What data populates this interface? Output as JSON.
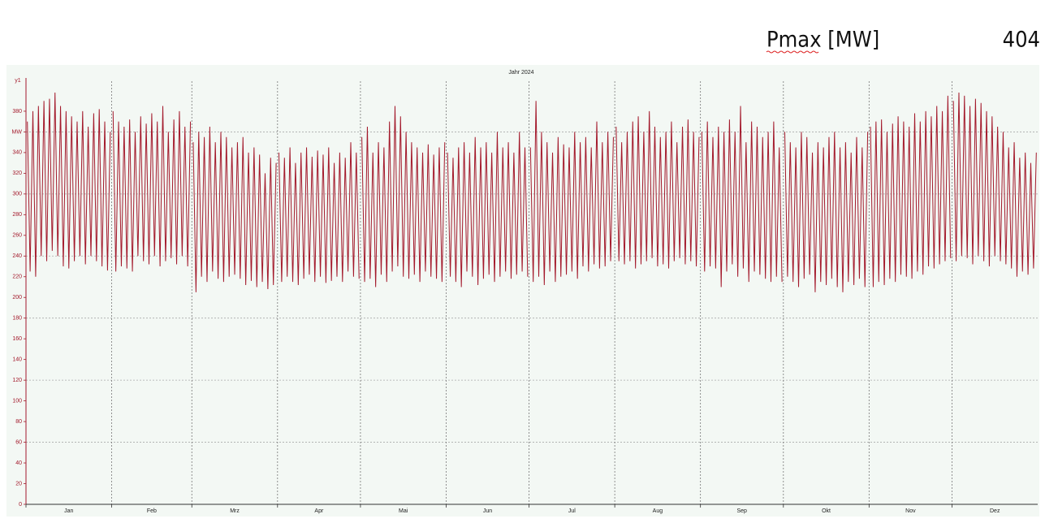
{
  "header": {
    "title": "Pmax [MW]",
    "value": "404"
  },
  "chart_data": {
    "type": "line",
    "title": "Jahr 2024",
    "y_axis_label": "y1",
    "color": "#a3192b",
    "ylim": [
      0,
      409
    ],
    "yticks": [
      0,
      20,
      40,
      60,
      80,
      100,
      120,
      140,
      160,
      180,
      200,
      220,
      240,
      260,
      280,
      300,
      320,
      340,
      {
        "value": 360,
        "label": "MW"
      },
      380
    ],
    "ygrid": [
      60,
      120,
      180,
      240,
      300,
      360
    ],
    "months": [
      {
        "label": "Jan",
        "values": [
          370,
          225,
          380,
          220,
          385,
          240,
          390,
          235,
          392,
          245,
          398,
          240,
          385,
          230,
          380,
          228,
          375,
          235,
          370,
          240,
          380,
          232,
          365,
          240,
          378,
          235,
          382,
          230,
          370,
          226,
          360
        ]
      },
      {
        "label": "Feb",
        "values": [
          380,
          225,
          370,
          230,
          365,
          228,
          372,
          225,
          360,
          240,
          375,
          235,
          368,
          232,
          378,
          240,
          370,
          230,
          385,
          235,
          360,
          238,
          372,
          232,
          380,
          240,
          365,
          230,
          370
        ]
      },
      {
        "label": "Mrz",
        "values": [
          350,
          205,
          360,
          220,
          355,
          215,
          365,
          225,
          350,
          218,
          360,
          215,
          355,
          220,
          345,
          222,
          350,
          218,
          355,
          212,
          340,
          216,
          345,
          210,
          338,
          215,
          320,
          208,
          335,
          212,
          330
        ]
      },
      {
        "label": "Apr",
        "values": [
          340,
          215,
          335,
          220,
          345,
          215,
          330,
          212,
          340,
          218,
          345,
          222,
          336,
          215,
          342,
          220,
          338,
          214,
          345,
          216,
          330,
          220,
          340,
          215,
          335,
          225,
          350,
          220,
          340,
          218
        ]
      },
      {
        "label": "Mai",
        "values": [
          355,
          215,
          365,
          218,
          340,
          210,
          350,
          222,
          345,
          215,
          370,
          225,
          385,
          230,
          375,
          220,
          360,
          218,
          350,
          222,
          345,
          215,
          340,
          225,
          348,
          220,
          338,
          218,
          345,
          215,
          350
        ]
      },
      {
        "label": "Jun",
        "values": [
          340,
          220,
          335,
          215,
          345,
          210,
          350,
          225,
          340,
          220,
          355,
          212,
          345,
          218,
          350,
          222,
          340,
          215,
          360,
          220,
          345,
          225,
          350,
          218,
          340,
          222,
          360,
          225,
          345,
          220
        ]
      },
      {
        "label": "Jul",
        "values": [
          345,
          215,
          390,
          220,
          360,
          212,
          350,
          225,
          340,
          215,
          355,
          220,
          348,
          222,
          345,
          225,
          360,
          218,
          350,
          230,
          355,
          225,
          345,
          232,
          370,
          228,
          350,
          230,
          360,
          235,
          355
        ]
      },
      {
        "label": "Aug",
        "values": [
          365,
          235,
          350,
          232,
          360,
          235,
          370,
          228,
          375,
          232,
          360,
          235,
          380,
          238,
          365,
          230,
          355,
          232,
          360,
          228,
          370,
          235,
          350,
          238,
          365,
          232,
          372,
          235,
          360,
          230,
          355
        ]
      },
      {
        "label": "Sep",
        "values": [
          360,
          225,
          370,
          230,
          355,
          228,
          365,
          210,
          360,
          225,
          372,
          232,
          360,
          220,
          385,
          228,
          350,
          215,
          370,
          225,
          365,
          222,
          355,
          218,
          360,
          215,
          370,
          220,
          345,
          215
        ]
      },
      {
        "label": "Okt",
        "values": [
          360,
          220,
          350,
          215,
          345,
          210,
          360,
          218,
          355,
          222,
          340,
          205,
          350,
          215,
          345,
          212,
          355,
          218,
          360,
          210,
          345,
          205,
          350,
          215,
          340,
          212,
          355,
          218,
          345,
          210,
          360
        ]
      },
      {
        "label": "Nov",
        "values": [
          365,
          210,
          370,
          215,
          372,
          212,
          360,
          218,
          368,
          215,
          375,
          222,
          370,
          220,
          365,
          218,
          378,
          225,
          370,
          222,
          380,
          230,
          375,
          228,
          385,
          232,
          380,
          235,
          395,
          238
        ]
      },
      {
        "label": "Dez",
        "values": [
          390,
          235,
          398,
          240,
          395,
          238,
          385,
          232,
          392,
          240,
          388,
          235,
          380,
          230,
          375,
          240,
          365,
          235,
          360,
          232,
          345,
          228,
          350,
          220,
          335,
          225,
          340,
          222,
          330,
          228,
          340
        ]
      }
    ]
  }
}
